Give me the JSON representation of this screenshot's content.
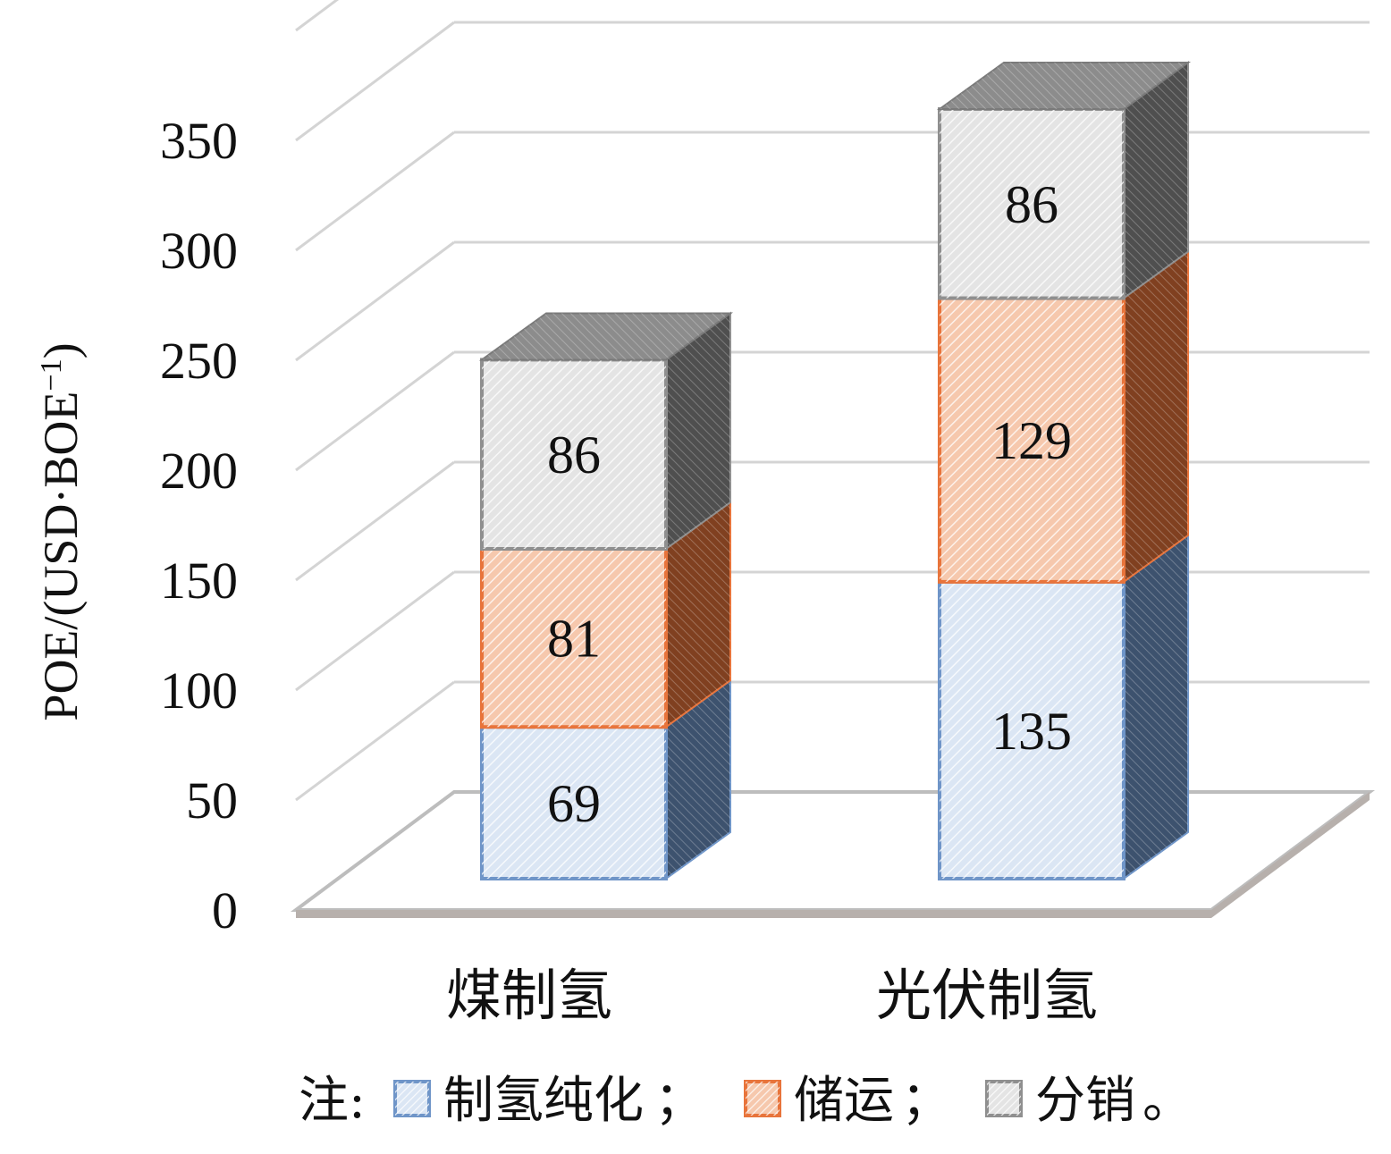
{
  "chart_data": {
    "type": "bar",
    "stacked": true,
    "three_d": true,
    "categories": [
      "煤制氢",
      "光伏制氢"
    ],
    "series": [
      {
        "name": "制氢纯化",
        "values": [
          69,
          135
        ],
        "color": "#6f95c8",
        "fill": "#dbe6f4"
      },
      {
        "name": "储运",
        "values": [
          81,
          129
        ],
        "color": "#e8743b",
        "fill": "#f6c8ad"
      },
      {
        "name": "分销",
        "values": [
          86,
          86
        ],
        "color": "#8f8f8f",
        "fill": "#e4e4e4"
      }
    ],
    "ylabel": "POE/(USD·BOE",
    "ylabel_sup": "−1",
    "ylabel_close": ")",
    "yticks": [
      "0",
      "50",
      "100",
      "150",
      "200",
      "250",
      "300",
      "350"
    ],
    "ylim": [
      0,
      400
    ],
    "grid": true,
    "legend": {
      "position": "bottom",
      "prefix": "注:",
      "separator": "；",
      "terminator": "。"
    }
  }
}
